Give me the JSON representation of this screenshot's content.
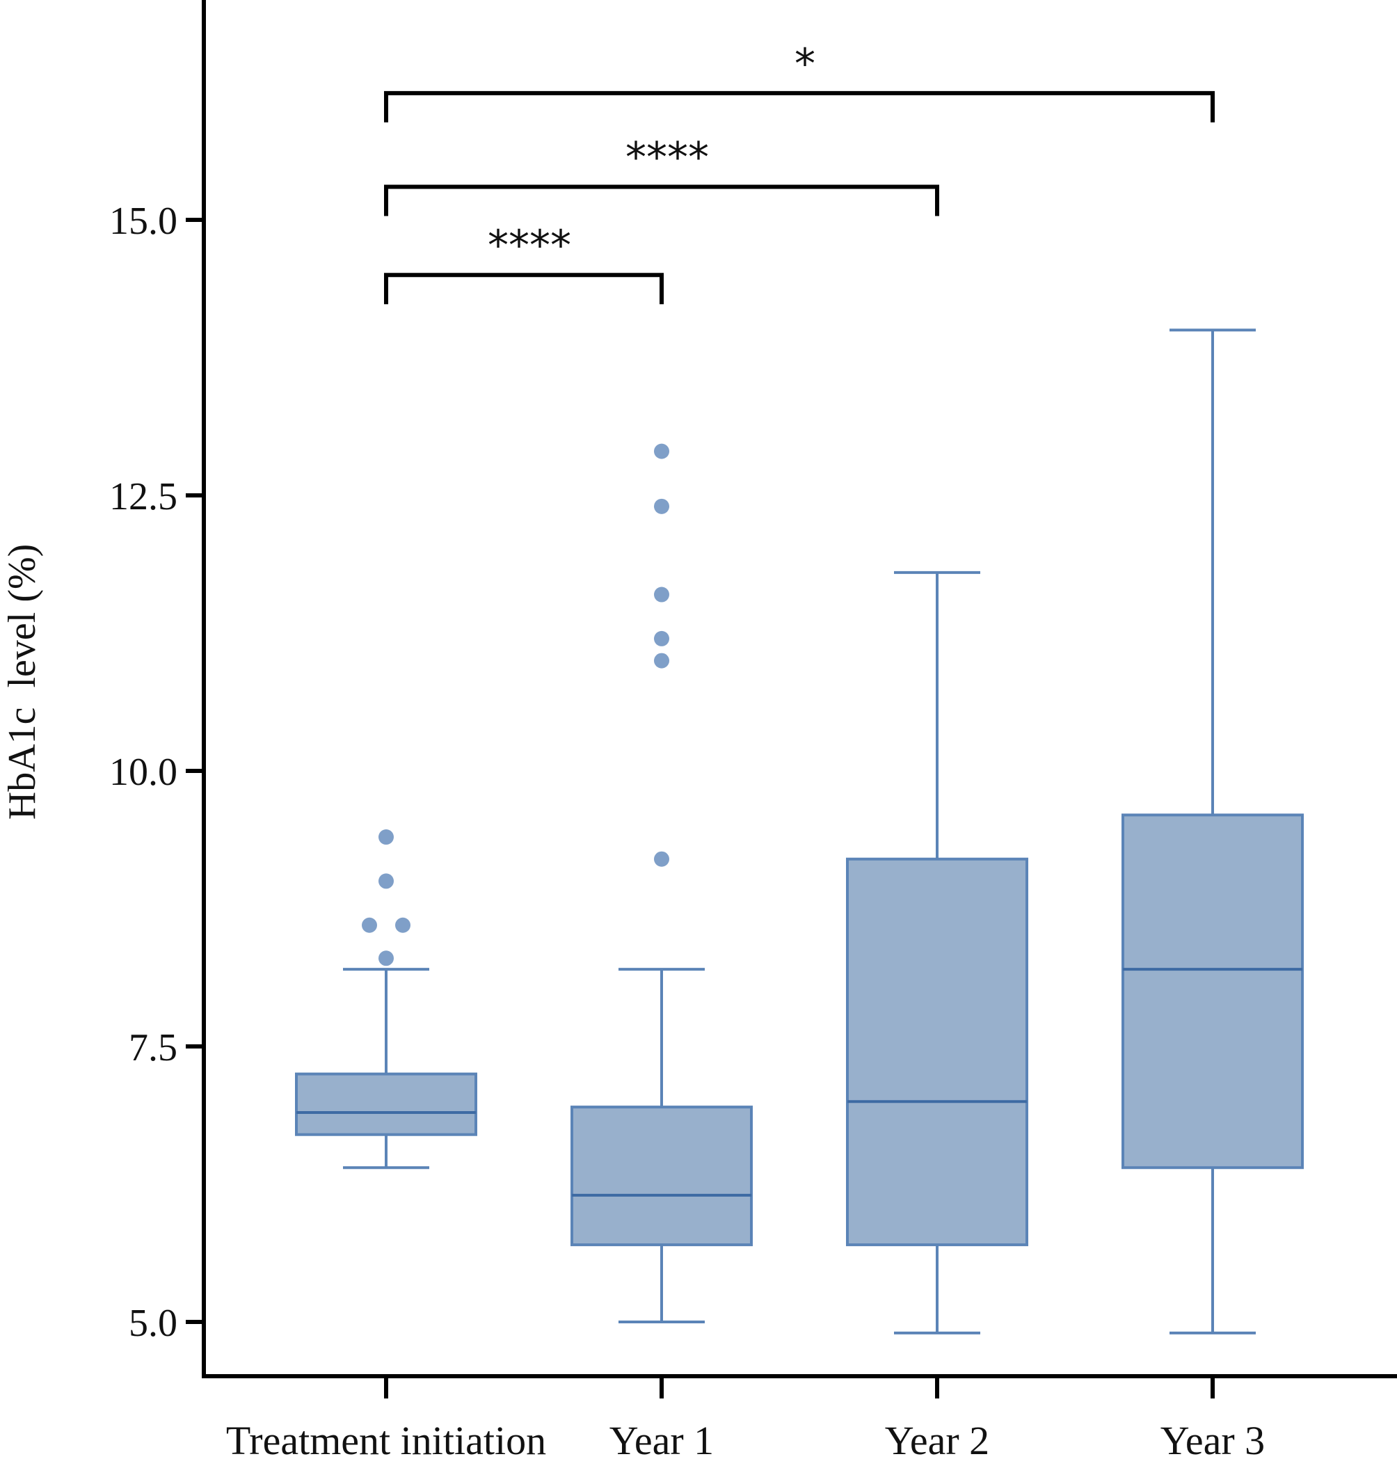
{
  "chart_data": {
    "type": "box",
    "ylabel": "HbA1c  level (%)",
    "xlabel": "",
    "ylim": [
      4.5,
      17.0
    ],
    "yticks": [
      5.0,
      7.5,
      10.0,
      12.5,
      15.0
    ],
    "ytick_labels": [
      "5.0",
      "7.5",
      "10.0",
      "12.5",
      "15.0"
    ],
    "grid": false,
    "colors": {
      "box_fill": "#98b0cc",
      "box_stroke": "#5b84b7",
      "median": "#3d6aa3",
      "outlier": "#7f9fc8",
      "axis": "#000000",
      "bracket": "#000000"
    },
    "categories": [
      "Treatment initiation",
      "Year 1",
      "Year 2",
      "Year 3"
    ],
    "boxes": [
      {
        "category": "Treatment initiation",
        "whisker_low": 6.4,
        "q1": 6.7,
        "median": 6.9,
        "q3": 7.25,
        "whisker_high": 8.2,
        "outliers": [
          8.3,
          8.6,
          8.6,
          9.0,
          9.4
        ]
      },
      {
        "category": "Year 1",
        "whisker_low": 5.0,
        "q1": 5.7,
        "median": 6.15,
        "q3": 6.95,
        "whisker_high": 8.2,
        "outliers": [
          9.2,
          11.0,
          11.2,
          11.6,
          12.4,
          12.9
        ]
      },
      {
        "category": "Year 2",
        "whisker_low": 4.9,
        "q1": 5.7,
        "median": 7.0,
        "q3": 9.2,
        "whisker_high": 11.8,
        "outliers": []
      },
      {
        "category": "Year 3",
        "whisker_low": 4.9,
        "q1": 6.4,
        "median": 8.2,
        "q3": 9.6,
        "whisker_high": 14.0,
        "outliers": []
      }
    ],
    "significance": [
      {
        "from": "Treatment initiation",
        "to": "Year 1",
        "label": "****",
        "level": 14.5
      },
      {
        "from": "Treatment initiation",
        "to": "Year 2",
        "label": "****",
        "level": 15.3
      },
      {
        "from": "Treatment initiation",
        "to": "Year 3",
        "label": "*",
        "level": 16.15
      }
    ]
  }
}
